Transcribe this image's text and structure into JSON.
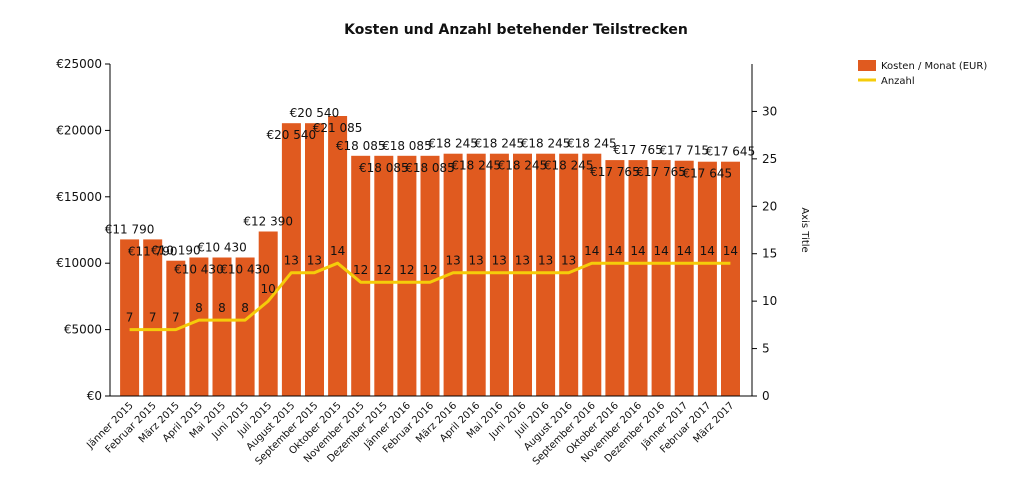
{
  "chart_data": {
    "type": "bar",
    "title": "Kosten und Anzahl betehender Teilstrecken",
    "categories": [
      "Jänner 2015",
      "Februar 2015",
      "März 2015",
      "April 2015",
      "Mai 2015",
      "Juni 2015",
      "Juli 2015",
      "August 2015",
      "September 2015",
      "Oktober 2015",
      "November 2015",
      "Dezember 2015",
      "Jänner 2016",
      "Februar 2016",
      "März 2016",
      "April 2016",
      "Mai 2016",
      "Juni 2016",
      "Juli 2016",
      "August 2016",
      "September 2016",
      "Oktober 2016",
      "November 2016",
      "Dezember 2016",
      "Jänner 2017",
      "Februar 2017",
      "März 2017"
    ],
    "series": [
      {
        "name": "Kosten / Monat (EUR)",
        "type": "bar",
        "axis": "left",
        "color": "#E05A1F",
        "values": [
          11790,
          11790,
          10190,
          10430,
          10430,
          10430,
          12390,
          20540,
          20540,
          21085,
          18085,
          18085,
          18085,
          18085,
          18245,
          18245,
          18245,
          18245,
          18245,
          18245,
          18245,
          17765,
          17765,
          17765,
          17715,
          17645,
          17645
        ],
        "labels": [
          "€11 790",
          "€11 790",
          "€10 190",
          "€10 430",
          "€10 430",
          "€10 430",
          "€12 390",
          "€20 540",
          "€20 540",
          "€21 085",
          "€18 085",
          "€18 085",
          "€18 085",
          "€18 085",
          "€18 245",
          "€18 245",
          "€18 245",
          "€18 245",
          "€18 245",
          "€18 245",
          "€18 245",
          "€17 765",
          "€17 765",
          "€17 765",
          "€17 715",
          "€17 645",
          "€17 645"
        ]
      },
      {
        "name": "Anzahl",
        "type": "line",
        "axis": "right",
        "color": "#F5CC0A",
        "values": [
          7,
          7,
          7,
          8,
          8,
          8,
          10,
          13,
          13,
          14,
          12,
          12,
          12,
          12,
          13,
          13,
          13,
          13,
          13,
          13,
          14,
          14,
          14,
          14,
          14,
          14,
          14
        ]
      }
    ],
    "y_left": {
      "min": 0,
      "max": 25000,
      "ticks": [
        0,
        5000,
        10000,
        15000,
        20000,
        25000
      ],
      "tick_labels": [
        "€0",
        "€5000",
        "€10000",
        "€15000",
        "€20000",
        "€25000"
      ]
    },
    "y_right": {
      "min": 0,
      "max": 35,
      "ticks": [
        0,
        5,
        10,
        15,
        20,
        25,
        30
      ],
      "title": "Axis Title"
    },
    "legend_position": "top-right",
    "grid": false
  }
}
